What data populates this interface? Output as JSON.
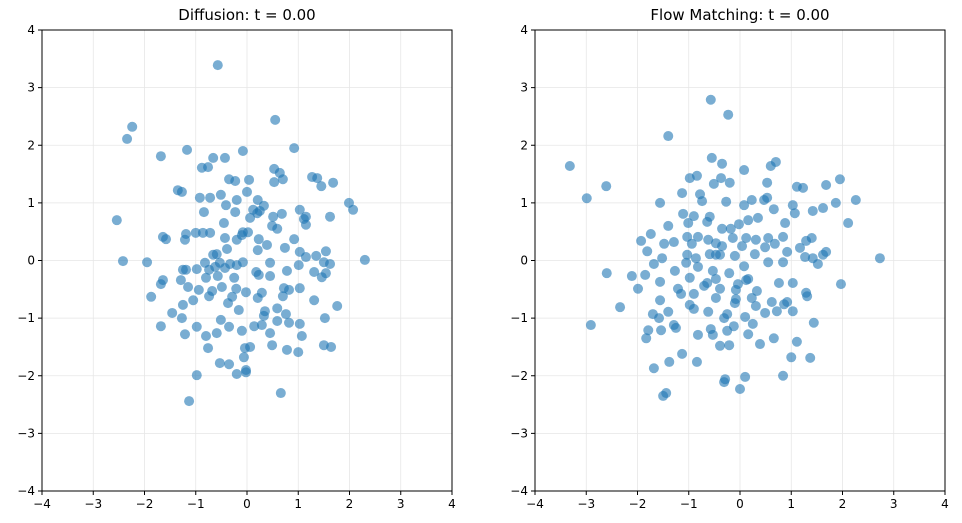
{
  "chart_data": [
    {
      "type": "scatter",
      "title": "Diffusion: t = 0.00",
      "xlim": [
        -4,
        4
      ],
      "ylim": [
        -4,
        4
      ],
      "xticks": [
        "−4",
        "−3",
        "−2",
        "−1",
        "0",
        "1",
        "2",
        "3",
        "4"
      ],
      "yticks": [
        "−4",
        "−3",
        "−2",
        "−1",
        "0",
        "1",
        "2",
        "3",
        "4"
      ],
      "grid": true,
      "color": "#1f77b4",
      "points": [
        [
          -0.57,
          3.39
        ],
        [
          0.55,
          2.44
        ],
        [
          -2.24,
          2.32
        ],
        [
          -2.34,
          2.11
        ],
        [
          0.92,
          1.95
        ],
        [
          -1.17,
          1.92
        ],
        [
          -0.08,
          1.9
        ],
        [
          -1.68,
          1.81
        ],
        [
          -0.66,
          1.78
        ],
        [
          -0.43,
          1.78
        ],
        [
          -0.88,
          1.61
        ],
        [
          -0.76,
          1.62
        ],
        [
          0.53,
          1.59
        ],
        [
          0.64,
          1.52
        ],
        [
          1.27,
          1.45
        ],
        [
          -0.35,
          1.41
        ],
        [
          1.37,
          1.43
        ],
        [
          0.7,
          1.41
        ],
        [
          -0.23,
          1.38
        ],
        [
          0.04,
          1.4
        ],
        [
          0.53,
          1.36
        ],
        [
          1.68,
          1.35
        ],
        [
          -1.35,
          1.22
        ],
        [
          -1.27,
          1.19
        ],
        [
          1.45,
          1.29
        ],
        [
          0,
          1.19
        ],
        [
          -0.51,
          1.14
        ],
        [
          -0.92,
          1.09
        ],
        [
          -0.72,
          1.09
        ],
        [
          -0.2,
          1.05
        ],
        [
          0.21,
          1.05
        ],
        [
          -0.41,
          0.96
        ],
        [
          0.33,
          0.95
        ],
        [
          -0.84,
          0.84
        ],
        [
          -0.23,
          0.84
        ],
        [
          0.12,
          0.88
        ],
        [
          0.2,
          0.82
        ],
        [
          0.25,
          0.86
        ],
        [
          1.03,
          0.88
        ],
        [
          1.99,
          1.0
        ],
        [
          2.07,
          0.88
        ],
        [
          -2.54,
          0.7
        ],
        [
          -0.45,
          0.65
        ],
        [
          0.06,
          0.74
        ],
        [
          0.51,
          0.76
        ],
        [
          0.68,
          0.81
        ],
        [
          1.11,
          0.72
        ],
        [
          1.15,
          0.76
        ],
        [
          1.62,
          0.76
        ],
        [
          0.49,
          0.6
        ],
        [
          0.59,
          0.55
        ],
        [
          1.15,
          0.62
        ],
        [
          -1.19,
          0.46
        ],
        [
          -1.0,
          0.48
        ],
        [
          -0.86,
          0.48
        ],
        [
          -0.72,
          0.48
        ],
        [
          -0.08,
          0.49
        ],
        [
          0.02,
          0.49
        ],
        [
          -0.1,
          0.44
        ],
        [
          -1.64,
          0.41
        ],
        [
          -1.58,
          0.37
        ],
        [
          -1.21,
          0.36
        ],
        [
          -0.43,
          0.39
        ],
        [
          -0.2,
          0.36
        ],
        [
          0.23,
          0.37
        ],
        [
          0.92,
          0.37
        ],
        [
          0.39,
          0.27
        ],
        [
          -0.39,
          0.2
        ],
        [
          0.21,
          0.18
        ],
        [
          0.74,
          0.22
        ],
        [
          1.03,
          0.15
        ],
        [
          1.54,
          0.16
        ],
        [
          -0.59,
          0.11
        ],
        [
          -0.66,
          0.1
        ],
        [
          1.15,
          0.06
        ],
        [
          1.35,
          0.08
        ],
        [
          2.3,
          0.01
        ],
        [
          -2.42,
          -0.01
        ],
        [
          -1.95,
          -0.03
        ],
        [
          -0.82,
          -0.04
        ],
        [
          -0.53,
          -0.04
        ],
        [
          -0.33,
          -0.06
        ],
        [
          -0.2,
          -0.08
        ],
        [
          -0.08,
          -0.03
        ],
        [
          0.45,
          -0.04
        ],
        [
          1.01,
          -0.08
        ],
        [
          1.5,
          -0.03
        ],
        [
          1.62,
          -0.06
        ],
        [
          -1.25,
          -0.16
        ],
        [
          -1.19,
          -0.16
        ],
        [
          -0.98,
          -0.15
        ],
        [
          -0.74,
          -0.16
        ],
        [
          -0.62,
          -0.11
        ],
        [
          -0.43,
          -0.13
        ],
        [
          0.18,
          -0.2
        ],
        [
          0.78,
          -0.18
        ],
        [
          1.31,
          -0.2
        ],
        [
          1.54,
          -0.22
        ],
        [
          -1.64,
          -0.34
        ],
        [
          -1.29,
          -0.34
        ],
        [
          -0.8,
          -0.3
        ],
        [
          -0.57,
          -0.27
        ],
        [
          -0.25,
          -0.3
        ],
        [
          0.23,
          -0.25
        ],
        [
          0.45,
          -0.27
        ],
        [
          1.46,
          -0.29
        ],
        [
          -1.68,
          -0.41
        ],
        [
          -1.15,
          -0.46
        ],
        [
          -0.94,
          -0.51
        ],
        [
          -0.68,
          -0.53
        ],
        [
          -0.49,
          -0.46
        ],
        [
          -0.21,
          -0.49
        ],
        [
          0.72,
          -0.48
        ],
        [
          0.82,
          -0.51
        ],
        [
          1.03,
          -0.48
        ],
        [
          -0.02,
          -0.55
        ],
        [
          0.29,
          -0.56
        ],
        [
          -1.87,
          -0.63
        ],
        [
          -0.74,
          -0.62
        ],
        [
          -0.29,
          -0.63
        ],
        [
          0.21,
          -0.65
        ],
        [
          0.7,
          -0.62
        ],
        [
          1.31,
          -0.69
        ],
        [
          -1.25,
          -0.77
        ],
        [
          -1.05,
          -0.69
        ],
        [
          -0.37,
          -0.74
        ],
        [
          1.76,
          -0.79
        ],
        [
          0.59,
          -0.83
        ],
        [
          -0.16,
          -0.86
        ],
        [
          -1.46,
          -0.91
        ],
        [
          -1.27,
          -1.0
        ],
        [
          0.35,
          -0.88
        ],
        [
          0.33,
          -0.96
        ],
        [
          0.76,
          -0.93
        ],
        [
          1.52,
          -1.0
        ],
        [
          -0.51,
          -1.03
        ],
        [
          0.59,
          -1.05
        ],
        [
          0.82,
          -1.08
        ],
        [
          1.03,
          -1.1
        ],
        [
          0.29,
          -1.12
        ],
        [
          -1.68,
          -1.14
        ],
        [
          -0.98,
          -1.15
        ],
        [
          -0.35,
          -1.15
        ],
        [
          0.14,
          -1.14
        ],
        [
          -1.21,
          -1.28
        ],
        [
          -0.8,
          -1.31
        ],
        [
          -0.59,
          -1.26
        ],
        [
          -0.1,
          -1.22
        ],
        [
          0.45,
          -1.26
        ],
        [
          1.07,
          -1.31
        ],
        [
          -0.76,
          -1.52
        ],
        [
          0.06,
          -1.5
        ],
        [
          -0.04,
          -1.52
        ],
        [
          0.49,
          -1.47
        ],
        [
          0.78,
          -1.55
        ],
        [
          1.5,
          -1.47
        ],
        [
          1.64,
          -1.5
        ],
        [
          1.0,
          -1.59
        ],
        [
          -0.06,
          -1.68
        ],
        [
          -0.53,
          -1.78
        ],
        [
          -0.35,
          -1.8
        ],
        [
          -0.02,
          -1.9
        ],
        [
          -0.2,
          -1.97
        ],
        [
          -0.02,
          -1.94
        ],
        [
          -0.98,
          -1.99
        ],
        [
          0.66,
          -2.3
        ],
        [
          -1.13,
          -2.44
        ]
      ]
    },
    {
      "type": "scatter",
      "title": "Flow Matching: t = 0.00",
      "xlim": [
        -4,
        4
      ],
      "ylim": [
        -4,
        4
      ],
      "xticks": [
        "−4",
        "−3",
        "−2",
        "−1",
        "0",
        "1",
        "2",
        "3",
        "4"
      ],
      "yticks": [
        "−4",
        "−3",
        "−2",
        "−1",
        "0",
        "1",
        "2",
        "3",
        "4"
      ],
      "grid": true,
      "color": "#1f77b4",
      "points": [
        [
          -0.57,
          2.79
        ],
        [
          -0.23,
          2.53
        ],
        [
          -1.4,
          2.16
        ],
        [
          -3.32,
          1.64
        ],
        [
          -2.99,
          1.08
        ],
        [
          -2.61,
          1.29
        ],
        [
          -0.55,
          1.78
        ],
        [
          -0.35,
          1.68
        ],
        [
          -0.37,
          1.43
        ],
        [
          0.08,
          1.57
        ],
        [
          0.6,
          1.64
        ],
        [
          0.7,
          1.71
        ],
        [
          1.95,
          1.41
        ],
        [
          1.68,
          1.31
        ],
        [
          1.11,
          1.28
        ],
        [
          1.23,
          1.26
        ],
        [
          -0.98,
          1.43
        ],
        [
          -0.84,
          1.47
        ],
        [
          -0.51,
          1.33
        ],
        [
          -0.2,
          1.35
        ],
        [
          0.53,
          1.35
        ],
        [
          -1.13,
          1.17
        ],
        [
          -0.78,
          1.15
        ],
        [
          0.53,
          1.09
        ],
        [
          -1.56,
          1.0
        ],
        [
          -0.74,
          1.03
        ],
        [
          -0.27,
          1.02
        ],
        [
          0.08,
          0.96
        ],
        [
          0.23,
          1.05
        ],
        [
          0.47,
          1.05
        ],
        [
          1.03,
          0.96
        ],
        [
          2.26,
          1.05
        ],
        [
          1.87,
          1.0
        ],
        [
          1.62,
          0.91
        ],
        [
          1.42,
          0.86
        ],
        [
          0.66,
          0.89
        ],
        [
          -1.11,
          0.81
        ],
        [
          -0.9,
          0.77
        ],
        [
          -0.59,
          0.76
        ],
        [
          1.07,
          0.82
        ],
        [
          -1.01,
          0.65
        ],
        [
          -0.64,
          0.67
        ],
        [
          -0.35,
          0.55
        ],
        [
          -0.18,
          0.55
        ],
        [
          -0.02,
          0.63
        ],
        [
          0.16,
          0.7
        ],
        [
          0.35,
          0.74
        ],
        [
          0.88,
          0.65
        ],
        [
          2.11,
          0.65
        ],
        [
          -1.4,
          0.6
        ],
        [
          -1.74,
          0.46
        ],
        [
          -1.03,
          0.41
        ],
        [
          -0.82,
          0.41
        ],
        [
          -0.62,
          0.36
        ],
        [
          -0.14,
          0.39
        ],
        [
          0.12,
          0.39
        ],
        [
          0.31,
          0.36
        ],
        [
          0.55,
          0.39
        ],
        [
          0.84,
          0.41
        ],
        [
          1.29,
          0.34
        ],
        [
          1.4,
          0.39
        ],
        [
          -1.93,
          0.34
        ],
        [
          -1.48,
          0.29
        ],
        [
          -1.29,
          0.32
        ],
        [
          -0.94,
          0.29
        ],
        [
          -0.35,
          0.25
        ],
        [
          -0.47,
          0.3
        ],
        [
          0.04,
          0.25
        ],
        [
          0.49,
          0.23
        ],
        [
          0.68,
          0.29
        ],
        [
          1.17,
          0.22
        ],
        [
          -1.81,
          0.16
        ],
        [
          -1.03,
          0.1
        ],
        [
          -0.59,
          0.11
        ],
        [
          -0.39,
          0.1
        ],
        [
          0.29,
          0.11
        ],
        [
          0.92,
          0.15
        ],
        [
          1.62,
          0.1
        ],
        [
          1.68,
          0.15
        ],
        [
          1.27,
          0.06
        ],
        [
          1.42,
          0.04
        ],
        [
          1.52,
          -0.06
        ],
        [
          2.73,
          0.04
        ],
        [
          -1.52,
          0.04
        ],
        [
          -0.86,
          0.04
        ],
        [
          -0.47,
          0.1
        ],
        [
          -0.1,
          0.08
        ],
        [
          0.55,
          -0.03
        ],
        [
          0.84,
          -0.03
        ],
        [
          -2.6,
          -0.22
        ],
        [
          -1.68,
          -0.06
        ],
        [
          -1.05,
          -0.04
        ],
        [
          -0.82,
          -0.11
        ],
        [
          0.08,
          -0.1
        ],
        [
          -1.27,
          -0.18
        ],
        [
          -0.53,
          -0.18
        ],
        [
          -0.21,
          -0.22
        ],
        [
          -2.11,
          -0.27
        ],
        [
          -1.85,
          -0.25
        ],
        [
          -0.98,
          -0.3
        ],
        [
          -0.47,
          -0.32
        ],
        [
          0.12,
          -0.34
        ],
        [
          0.16,
          -0.32
        ],
        [
          -1.56,
          -0.37
        ],
        [
          -0.64,
          -0.39
        ],
        [
          -0.04,
          -0.41
        ],
        [
          0.76,
          -0.39
        ],
        [
          1.03,
          -0.39
        ],
        [
          -0.7,
          -0.44
        ],
        [
          1.97,
          -0.41
        ],
        [
          -1.99,
          -0.49
        ],
        [
          -1.21,
          -0.49
        ],
        [
          -0.39,
          -0.49
        ],
        [
          -0.08,
          -0.51
        ],
        [
          0.33,
          -0.53
        ],
        [
          1.29,
          -0.56
        ],
        [
          -0.9,
          -0.58
        ],
        [
          -1.15,
          -0.58
        ],
        [
          0.23,
          -0.65
        ],
        [
          -0.08,
          -0.67
        ],
        [
          1.31,
          -0.62
        ],
        [
          -1.56,
          -0.69
        ],
        [
          -0.47,
          -0.65
        ],
        [
          -0.1,
          -0.74
        ],
        [
          0.62,
          -0.72
        ],
        [
          0.92,
          -0.72
        ],
        [
          -2.34,
          -0.81
        ],
        [
          -0.98,
          -0.77
        ],
        [
          -0.9,
          -0.84
        ],
        [
          0.31,
          -0.79
        ],
        [
          0.86,
          -0.76
        ],
        [
          -1.7,
          -0.93
        ],
        [
          -1.4,
          -0.89
        ],
        [
          -0.62,
          -0.89
        ],
        [
          -0.25,
          -0.93
        ],
        [
          0.49,
          -0.91
        ],
        [
          0.72,
          -0.88
        ],
        [
          1.03,
          -0.88
        ],
        [
          -0.31,
          -1.0
        ],
        [
          0.1,
          -0.98
        ],
        [
          1.44,
          -1.08
        ],
        [
          -2.91,
          -1.12
        ],
        [
          -1.58,
          -1.0
        ],
        [
          -1.29,
          -1.12
        ],
        [
          -0.57,
          -1.19
        ],
        [
          -0.12,
          -1.14
        ],
        [
          0.25,
          -1.1
        ],
        [
          -1.79,
          -1.21
        ],
        [
          -1.54,
          -1.21
        ],
        [
          -1.25,
          -1.17
        ],
        [
          -0.25,
          -1.22
        ],
        [
          -1.13,
          -1.62
        ],
        [
          -0.82,
          -1.29
        ],
        [
          -0.53,
          -1.29
        ],
        [
          0.16,
          -1.28
        ],
        [
          0.66,
          -1.35
        ],
        [
          1.11,
          -1.41
        ],
        [
          -1.83,
          -1.35
        ],
        [
          0.39,
          -1.45
        ],
        [
          -0.39,
          -1.48
        ],
        [
          -0.21,
          -1.47
        ],
        [
          1.37,
          -1.69
        ],
        [
          1.0,
          -1.68
        ],
        [
          -0.84,
          -1.76
        ],
        [
          -1.68,
          -1.87
        ],
        [
          -1.38,
          -1.76
        ],
        [
          -0.29,
          -2.06
        ],
        [
          -0.31,
          -2.11
        ],
        [
          0.1,
          -2.02
        ],
        [
          0.84,
          -2.0
        ],
        [
          0.0,
          -2.23
        ],
        [
          -1.44,
          -2.3
        ],
        [
          -1.5,
          -2.35
        ]
      ]
    }
  ]
}
